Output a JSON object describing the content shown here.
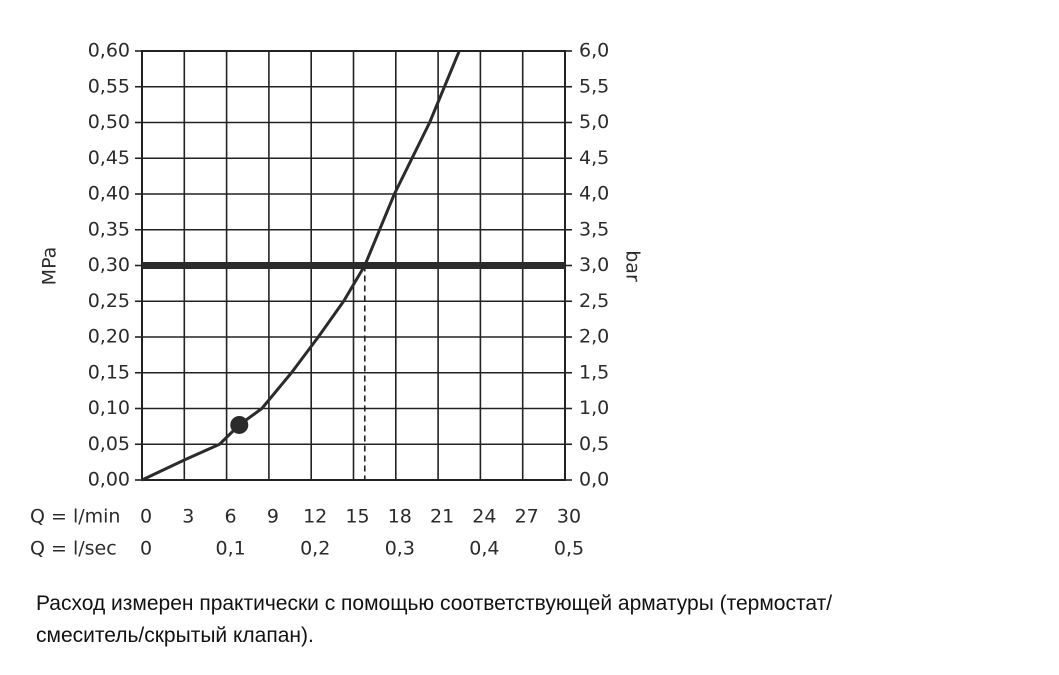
{
  "chart_data": {
    "type": "line",
    "ylabel": "MPa",
    "y2label": "bar",
    "xlabel": "Q = l/min",
    "x2label": "Q = l/sec",
    "x": [
      0,
      3,
      5.5,
      6.9,
      8.5,
      10.6,
      12.5,
      14.3,
      15.8,
      17.9,
      20.4,
      22.5
    ],
    "series": [
      {
        "color": "#2b2b2b",
        "values": [
          0,
          0.028,
          0.05,
          0.077,
          0.1,
          0.15,
          0.2,
          0.25,
          0.3,
          0.4,
          0.5,
          0.6
        ]
      }
    ],
    "marker": {
      "x": 6.9,
      "y": 0.077,
      "color": "#2b2b2b"
    },
    "reference_y": 0.3,
    "reference_x": 15.8,
    "xlim": [
      0,
      30
    ],
    "xticks": [
      0,
      3,
      6,
      9,
      12,
      15,
      18,
      21,
      24,
      27,
      30
    ],
    "x2lim": [
      0,
      0.5
    ],
    "x2ticks": [
      0,
      {
        "value": 0.1,
        "label": "0,1"
      },
      {
        "value": 0.2,
        "label": "0,2"
      },
      {
        "value": 0.3,
        "label": "0,3"
      },
      {
        "value": 0.4,
        "label": "0,4"
      },
      {
        "value": 0.5,
        "label": "0,5"
      }
    ],
    "ylim": [
      0,
      0.6
    ],
    "yticks": [
      {
        "value": 0,
        "label": "0,00"
      },
      {
        "value": 0.05,
        "label": "0,05"
      },
      {
        "value": 0.1,
        "label": "0,10"
      },
      {
        "value": 0.15,
        "label": "0,15"
      },
      {
        "value": 0.2,
        "label": "0,20"
      },
      {
        "value": 0.25,
        "label": "0,25"
      },
      {
        "value": 0.3,
        "label": "0,30"
      },
      {
        "value": 0.35,
        "label": "0,35"
      },
      {
        "value": 0.4,
        "label": "0,40"
      },
      {
        "value": 0.45,
        "label": "0,45"
      },
      {
        "value": 0.5,
        "label": "0,50"
      },
      {
        "value": 0.55,
        "label": "0,55"
      },
      {
        "value": 0.6,
        "label": "0,60"
      }
    ],
    "y2lim": [
      0,
      6
    ],
    "y2ticks": [
      {
        "value": 0,
        "label": "0,0"
      },
      {
        "value": 0.5,
        "label": "0,5"
      },
      {
        "value": 1,
        "label": "1,0"
      },
      {
        "value": 1.5,
        "label": "1,5"
      },
      {
        "value": 2,
        "label": "2,0"
      },
      {
        "value": 2.5,
        "label": "2,5"
      },
      {
        "value": 3,
        "label": "3,0"
      },
      {
        "value": 3.5,
        "label": "3,5"
      },
      {
        "value": 4,
        "label": "4,0"
      },
      {
        "value": 4.5,
        "label": "4,5"
      },
      {
        "value": 5,
        "label": "5,0"
      },
      {
        "value": 5.5,
        "label": "5,5"
      },
      {
        "value": 6,
        "label": "6,0"
      }
    ],
    "grid": true,
    "caption": [
      "Расход измерен практически с помощью соответствующей арматуры (термостат/",
      "смеситель/скрытый клапан)."
    ]
  }
}
